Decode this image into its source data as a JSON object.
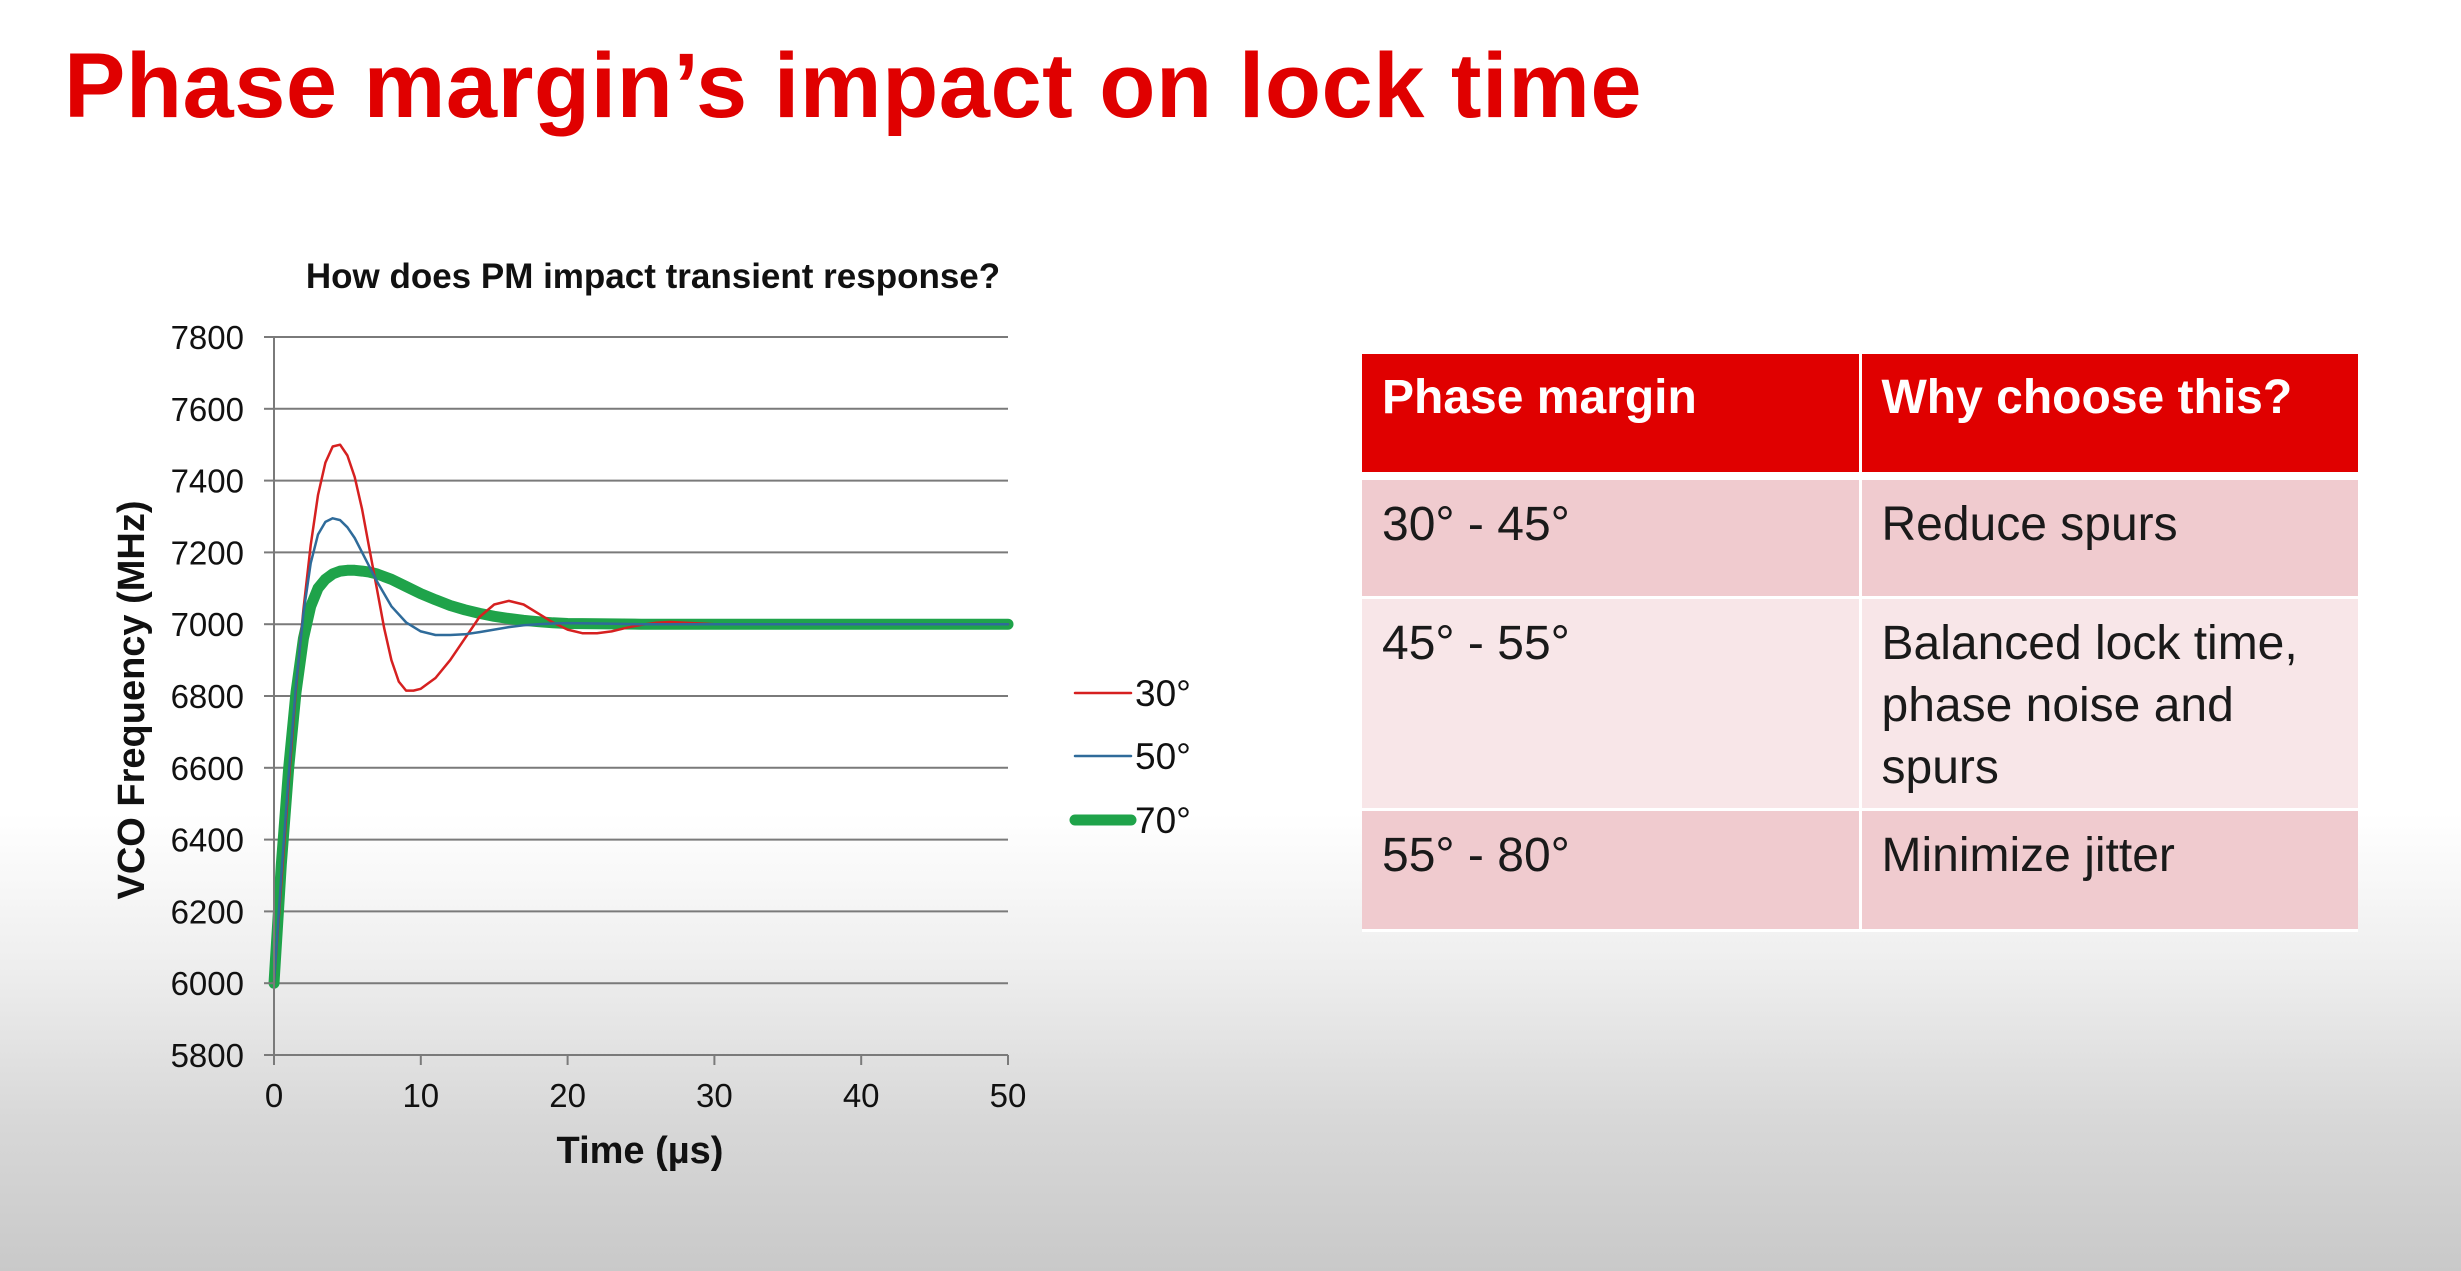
{
  "slide": {
    "title": "Phase margin’s impact on lock time"
  },
  "chart_data": {
    "type": "line",
    "title": "How does PM impact transient response?",
    "xlabel": "Time (µs)",
    "ylabel": "VCO Frequency (MHz)",
    "xlim": [
      0,
      50
    ],
    "ylim": [
      5800,
      7800
    ],
    "xticks": [
      0,
      10,
      20,
      30,
      40,
      50
    ],
    "yticks": [
      5800,
      6000,
      6200,
      6400,
      6600,
      6800,
      7000,
      7200,
      7400,
      7600,
      7800
    ],
    "grid": "horizontal",
    "legend_position": "right",
    "series": [
      {
        "name": "30°",
        "color": "#d62020",
        "x": [
          0,
          0.5,
          1,
          1.5,
          2,
          2.5,
          3,
          3.5,
          4,
          4.5,
          5,
          5.5,
          6,
          6.5,
          7,
          7.5,
          8,
          8.5,
          9,
          9.5,
          10,
          10.5,
          11,
          12,
          13,
          14,
          15,
          16,
          17,
          18,
          19,
          20,
          21,
          22,
          23,
          24,
          25,
          26,
          27,
          28,
          30,
          35,
          40,
          45,
          50
        ],
        "y": [
          6000,
          6280,
          6560,
          6820,
          7040,
          7220,
          7360,
          7450,
          7495,
          7500,
          7470,
          7410,
          7320,
          7210,
          7100,
          6990,
          6900,
          6840,
          6815,
          6815,
          6820,
          6835,
          6850,
          6900,
          6960,
          7020,
          7055,
          7065,
          7055,
          7030,
          7005,
          6985,
          6975,
          6975,
          6980,
          6990,
          6998,
          7004,
          7006,
          7004,
          7000,
          7000,
          7000,
          7000,
          7000
        ]
      },
      {
        "name": "50°",
        "color": "#2f6b9a",
        "x": [
          0,
          0.5,
          1,
          1.5,
          2,
          2.5,
          3,
          3.5,
          4,
          4.5,
          5,
          5.5,
          6,
          7,
          8,
          9,
          10,
          11,
          12,
          13,
          14,
          15,
          16,
          17,
          18,
          19,
          20,
          22,
          25,
          30,
          35,
          40,
          45,
          50
        ],
        "y": [
          6000,
          6300,
          6580,
          6830,
          7030,
          7170,
          7250,
          7285,
          7295,
          7290,
          7270,
          7240,
          7200,
          7120,
          7050,
          7005,
          6980,
          6970,
          6970,
          6972,
          6978,
          6985,
          6992,
          6997,
          7000,
          7002,
          7003,
          7002,
          7000,
          7000,
          7000,
          7000,
          7000,
          7000
        ]
      },
      {
        "name": "70°",
        "color": "#1fa34a",
        "x": [
          0,
          0.5,
          1,
          1.5,
          2,
          2.5,
          3,
          3.5,
          4,
          4.5,
          5,
          5.5,
          6,
          6.5,
          7,
          8,
          9,
          10,
          11,
          12,
          13,
          14,
          15,
          16,
          17,
          18,
          19,
          20,
          22,
          25,
          30,
          35,
          40,
          45,
          50
        ],
        "y": [
          6000,
          6330,
          6600,
          6810,
          6960,
          7050,
          7100,
          7125,
          7140,
          7148,
          7150,
          7150,
          7148,
          7145,
          7140,
          7125,
          7105,
          7085,
          7068,
          7052,
          7040,
          7030,
          7022,
          7016,
          7011,
          7007,
          7004,
          7002,
          7001,
          7000,
          7000,
          7000,
          7000,
          7000,
          7000
        ]
      }
    ]
  },
  "table": {
    "headers": [
      "Phase margin",
      "Why choose this?"
    ],
    "rows": [
      [
        "30° - 45°",
        "Reduce spurs"
      ],
      [
        "45° - 55°",
        "Balanced lock time, phase noise and spurs"
      ],
      [
        "55° - 80°",
        "Minimize jitter"
      ]
    ]
  }
}
